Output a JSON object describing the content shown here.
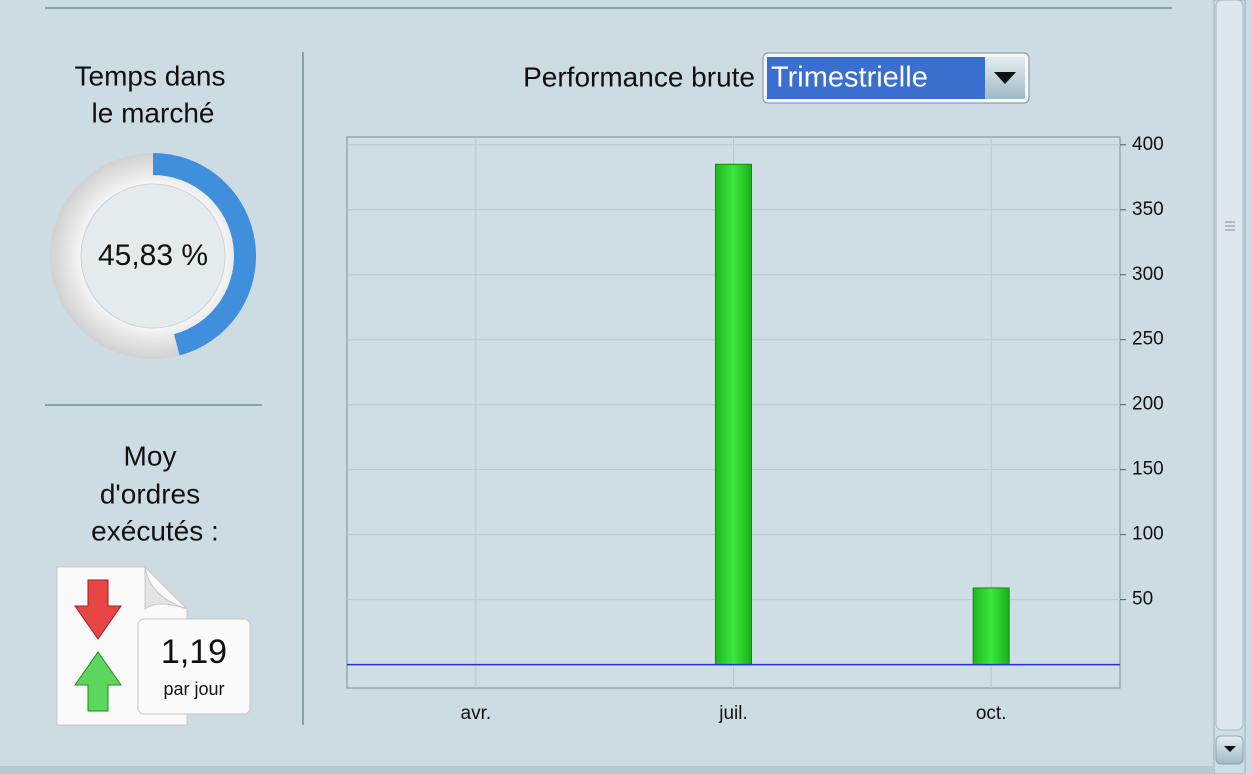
{
  "sidebar": {
    "time_in_market": {
      "title_lines": [
        "Temps dans",
        "le marché"
      ],
      "value": 45.83,
      "value_label": "45,83 %"
    },
    "avg_orders": {
      "title_lines": [
        "Moy",
        "d'ordres",
        "exécutés :"
      ],
      "value_text": "1,19",
      "unit": "par jour"
    }
  },
  "controls": {
    "label": "Performance brute",
    "period": "Trimestrielle"
  },
  "chart_data": {
    "type": "bar",
    "categories": [
      "avr.",
      "juil.",
      "oct."
    ],
    "values": [
      0,
      385,
      59
    ],
    "color": "#22cc22",
    "ylim": [
      -18,
      406
    ],
    "yticks": [
      50,
      100,
      150,
      200,
      250,
      300,
      350,
      400
    ],
    "grid": true,
    "y_axis_side": "right"
  }
}
